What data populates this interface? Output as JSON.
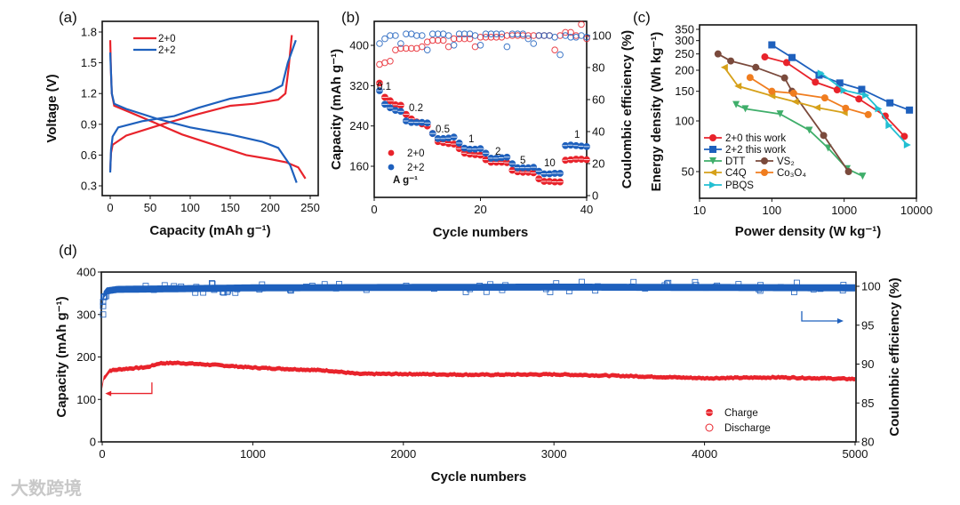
{
  "watermark": "大数跨境",
  "colors": {
    "red": "#e8232b",
    "blue": "#1e60bd",
    "dtt": "#3fae6a",
    "vs2": "#7a4a3c",
    "c4q": "#d6a11a",
    "co3o4": "#f07d1f",
    "pbqs": "#22bfd2"
  },
  "chart_data": [
    {
      "panel": "(a)",
      "type": "line",
      "xlabel": "Capacity (mAh g⁻¹)",
      "ylabel": "Voltage (V)",
      "xlim": [
        -5,
        255
      ],
      "ylim": [
        0.2,
        1.9
      ],
      "xticks": [
        0,
        50,
        100,
        150,
        200,
        250
      ],
      "yticks": [
        0.3,
        0.6,
        0.9,
        1.2,
        1.5,
        1.8
      ],
      "legend": [
        "2+0",
        "2+2"
      ],
      "legend_position": "top-left",
      "series": [
        {
          "name": "2+0",
          "curve": "charge",
          "color": "red",
          "points": [
            [
              0,
              0.45
            ],
            [
              1,
              0.62
            ],
            [
              3,
              0.7
            ],
            [
              20,
              0.79
            ],
            [
              65,
              0.9
            ],
            [
              110,
              1.0
            ],
            [
              150,
              1.08
            ],
            [
              180,
              1.1
            ],
            [
              210,
              1.14
            ],
            [
              219,
              1.2
            ],
            [
              223,
              1.45
            ],
            [
              227,
              1.77
            ]
          ]
        },
        {
          "name": "2+0",
          "curve": "discharge",
          "color": "red",
          "points": [
            [
              0,
              1.72
            ],
            [
              1,
              1.4
            ],
            [
              2,
              1.2
            ],
            [
              5,
              1.08
            ],
            [
              30,
              1.0
            ],
            [
              60,
              0.9
            ],
            [
              90,
              0.8
            ],
            [
              130,
              0.7
            ],
            [
              170,
              0.6
            ],
            [
              200,
              0.56
            ],
            [
              220,
              0.53
            ],
            [
              235,
              0.48
            ],
            [
              244,
              0.37
            ]
          ]
        },
        {
          "name": "2+2",
          "curve": "charge",
          "color": "blue",
          "points": [
            [
              0,
              0.43
            ],
            [
              1,
              0.65
            ],
            [
              3,
              0.78
            ],
            [
              10,
              0.87
            ],
            [
              40,
              0.93
            ],
            [
              80,
              0.98
            ],
            [
              110,
              1.06
            ],
            [
              150,
              1.15
            ],
            [
              200,
              1.22
            ],
            [
              215,
              1.28
            ],
            [
              222,
              1.5
            ],
            [
              232,
              1.72
            ]
          ]
        },
        {
          "name": "2+2",
          "curve": "discharge",
          "color": "blue",
          "points": [
            [
              0,
              1.6
            ],
            [
              1,
              1.4
            ],
            [
              2,
              1.2
            ],
            [
              5,
              1.1
            ],
            [
              20,
              1.05
            ],
            [
              60,
              0.95
            ],
            [
              100,
              0.87
            ],
            [
              150,
              0.8
            ],
            [
              190,
              0.73
            ],
            [
              210,
              0.67
            ],
            [
              225,
              0.5
            ],
            [
              233,
              0.33
            ]
          ]
        }
      ]
    },
    {
      "panel": "(b)",
      "type": "scatter",
      "xlabel": "Cycle numbers",
      "ylabel": "Capacity (mAh g⁻¹)",
      "y2label": "Coulombic efficiency (%)",
      "xlim": [
        0,
        40
      ],
      "ylim": [
        108,
        440
      ],
      "y2lim": [
        0,
        109
      ],
      "xticks": [
        0,
        20,
        40
      ],
      "yticks": [
        160,
        240,
        320,
        400
      ],
      "y2ticks": [
        0,
        20,
        40,
        60,
        80,
        100
      ],
      "legend": [
        "2+0",
        "2+2"
      ],
      "legend_unit": "A g⁻¹",
      "legend_position": "bottom-left",
      "rate_labels": [
        "0.1",
        "0.2",
        "0.5",
        "1",
        "2",
        "5",
        "10",
        "1"
      ],
      "capacity": {
        "2+0": [
          325,
          297,
          290,
          282,
          281,
          263,
          254,
          248,
          244,
          240,
          225,
          209,
          207,
          205,
          204,
          195,
          186,
          184,
          183,
          182,
          173,
          168,
          168,
          168,
          167,
          152,
          149,
          148,
          148,
          147,
          135,
          130,
          130,
          129,
          129,
          172,
          173,
          174,
          174,
          173
        ],
        "2+2": [
          310,
          283,
          276,
          271,
          269,
          250,
          247,
          247,
          247,
          246,
          225,
          215,
          215,
          216,
          218,
          206,
          196,
          194,
          194,
          195,
          186,
          176,
          176,
          177,
          178,
          165,
          157,
          157,
          157,
          158,
          150,
          145,
          145,
          146,
          146,
          201,
          202,
          201,
          200,
          199
        ]
      },
      "coulombic_efficiency": {
        "2+0": [
          82,
          83,
          84,
          91,
          92,
          92,
          92,
          92,
          93,
          96,
          97,
          97,
          97,
          93,
          98,
          98,
          98,
          98,
          93,
          99,
          99,
          99,
          99,
          99,
          100,
          100,
          100,
          100,
          100,
          100,
          100,
          100,
          100,
          91,
          100,
          102,
          102,
          100,
          107,
          98
        ],
        "2+2": [
          95,
          98,
          100,
          100,
          95,
          101,
          101,
          100,
          100,
          91,
          101,
          101,
          101,
          100,
          94,
          101,
          101,
          101,
          100,
          94,
          101,
          101,
          101,
          101,
          93,
          101,
          101,
          101,
          98,
          95,
          100,
          100,
          100,
          99,
          88,
          100,
          99,
          99,
          100,
          99
        ]
      }
    },
    {
      "panel": "(c)",
      "type": "line",
      "scale": "log-log",
      "xlabel": "Power density (W kg⁻¹)",
      "ylabel": "Energy density (Wh kg⁻¹)",
      "xlim": [
        10,
        10000
      ],
      "ylim": [
        35,
        360
      ],
      "xticks": [
        10,
        100,
        1000,
        10000
      ],
      "yticks": [
        50,
        100,
        150,
        200,
        250,
        300,
        350
      ],
      "legend_position": "bottom-left",
      "series": [
        {
          "name": "2+0 this work",
          "color": "red",
          "marker": "circle",
          "points": [
            [
              80,
              240
            ],
            [
              160,
              222
            ],
            [
              400,
              170
            ],
            [
              800,
              153
            ],
            [
              1600,
              135
            ],
            [
              3700,
              107
            ],
            [
              6800,
              81
            ]
          ]
        },
        {
          "name": "2+2 this work",
          "color": "blue",
          "marker": "square",
          "points": [
            [
              100,
              283
            ],
            [
              190,
              238
            ],
            [
              450,
              187
            ],
            [
              870,
              168
            ],
            [
              1750,
              154
            ],
            [
              4300,
              128
            ],
            [
              8000,
              116
            ]
          ]
        },
        {
          "name": "DTT",
          "color": "dtt",
          "marker": "tri-down",
          "points": [
            [
              32,
              125
            ],
            [
              43,
              118
            ],
            [
              130,
              110
            ],
            [
              330,
              88
            ],
            [
              600,
              69
            ],
            [
              1100,
              52
            ],
            [
              1800,
              47
            ]
          ]
        },
        {
          "name": "VS₂",
          "color": "vs2",
          "marker": "circle",
          "points": [
            [
              18,
              250
            ],
            [
              27,
              227
            ],
            [
              60,
              208
            ],
            [
              150,
              180
            ],
            [
              190,
              150
            ],
            [
              520,
              82
            ],
            [
              1150,
              50
            ]
          ]
        },
        {
          "name": "C4Q",
          "color": "c4q",
          "marker": "tri-left",
          "points": [
            [
              22,
              208
            ],
            [
              34,
              161
            ],
            [
              100,
              141
            ],
            [
              210,
              130
            ],
            [
              420,
              120
            ],
            [
              1000,
              112
            ]
          ]
        },
        {
          "name": "Co₃O₄",
          "color": "co3o4",
          "marker": "circle",
          "points": [
            [
              50,
              181
            ],
            [
              100,
              150
            ],
            [
              200,
              146
            ],
            [
              540,
              137
            ],
            [
              1050,
              119
            ],
            [
              2150,
              109
            ]
          ]
        },
        {
          "name": "PBQS",
          "color": "pbqs",
          "marker": "tri-right",
          "points": [
            [
              480,
              192
            ],
            [
              1000,
              152
            ],
            [
              2000,
              142
            ],
            [
              3000,
              118
            ],
            [
              4200,
              94
            ],
            [
              7500,
              72
            ]
          ]
        }
      ]
    },
    {
      "panel": "(d)",
      "type": "scatter",
      "xlabel": "Cycle numbers",
      "ylabel": "Capacity (mAh g⁻¹)",
      "y2label": "Coulombic efficiency (%)",
      "xlim": [
        0,
        5000
      ],
      "ylim": [
        0,
        400
      ],
      "y2lim": [
        80,
        102
      ],
      "xticks": [
        0,
        1000,
        2000,
        3000,
        4000,
        5000
      ],
      "yticks": [
        0,
        100,
        200,
        300,
        400
      ],
      "y2ticks": [
        80,
        85,
        90,
        95,
        100
      ],
      "legend": [
        "Charge",
        "Discharge"
      ],
      "legend_position": "bottom-right",
      "capacity_trend": [
        [
          0,
          130
        ],
        [
          10,
          150
        ],
        [
          50,
          168
        ],
        [
          150,
          172
        ],
        [
          300,
          176
        ],
        [
          380,
          185
        ],
        [
          500,
          186
        ],
        [
          800,
          180
        ],
        [
          1000,
          175
        ],
        [
          1500,
          168
        ],
        [
          1700,
          160
        ],
        [
          2000,
          160
        ],
        [
          2500,
          158
        ],
        [
          3000,
          159
        ],
        [
          3500,
          155
        ],
        [
          4000,
          150
        ],
        [
          4500,
          152
        ],
        [
          5000,
          148
        ]
      ],
      "ce_trend": [
        [
          0,
          97.5
        ],
        [
          5,
          98.8
        ],
        [
          30,
          99.4
        ],
        [
          100,
          99.6
        ],
        [
          1000,
          99.8
        ],
        [
          3000,
          99.9
        ],
        [
          5000,
          99.8
        ]
      ]
    }
  ]
}
